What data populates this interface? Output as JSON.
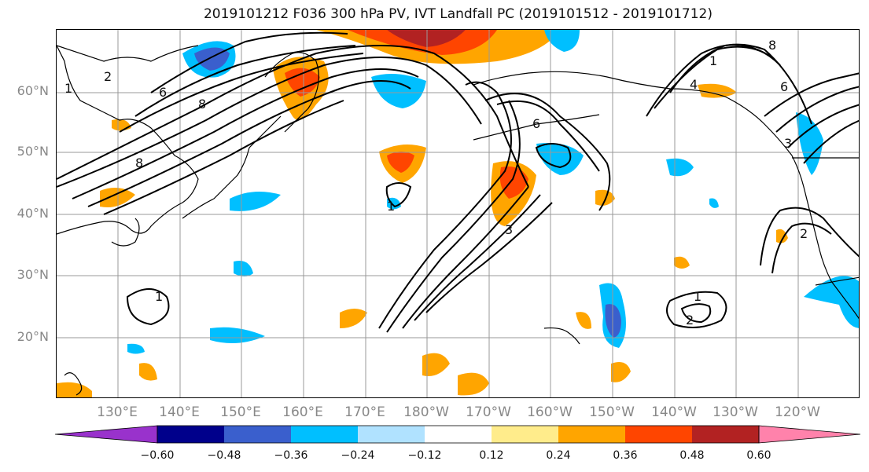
{
  "title": "2019101212 F036 300 hPa PV, IVT Landfall PC (2019101512 - 2019101712)",
  "lat_labels": [
    "60°N",
    "50°N",
    "40°N",
    "30°N",
    "20°N"
  ],
  "lon_labels": [
    "130°E",
    "140°E",
    "150°E",
    "160°E",
    "170°E",
    "180°W",
    "170°W",
    "160°W",
    "150°W",
    "140°W",
    "130°W",
    "120°W"
  ],
  "colorbar": {
    "ticks": [
      "−0.60",
      "−0.48",
      "−0.36",
      "−0.24",
      "−0.12",
      "0.12",
      "0.24",
      "0.36",
      "0.48",
      "0.60"
    ],
    "colors": [
      "#9932cc",
      "#00008b",
      "#3a5fcd",
      "#00bfff",
      "#b0e2ff",
      "#ffffff",
      "#ffec8b",
      "#ffa500",
      "#ff4500",
      "#b22222",
      "#ff82ab"
    ]
  },
  "contour_labels": [
    "2",
    "6",
    "8",
    "1",
    "8",
    "6",
    "3",
    "1",
    "1",
    "2",
    "1",
    "8",
    "4",
    "6",
    "1",
    "2",
    "3"
  ],
  "colors": {
    "ocean": "#ffffff",
    "contour": "#000000",
    "grid": "#999999"
  }
}
